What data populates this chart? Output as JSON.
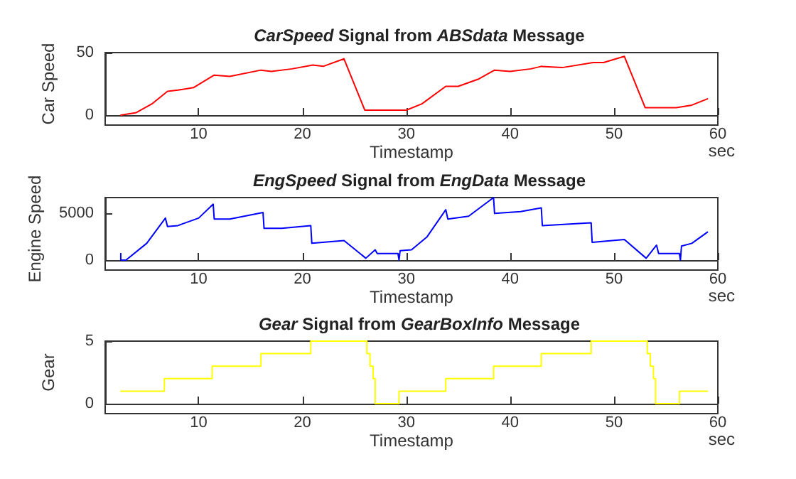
{
  "chart_data": [
    {
      "type": "line",
      "title": "CarSpeed Signal from ABSdata Message",
      "xlabel": "Timestamp",
      "ylabel": "Car Speed",
      "annotations": [
        "sec"
      ],
      "xlim": [
        1,
        60
      ],
      "xticks": [
        10,
        20,
        30,
        40,
        50,
        60
      ],
      "ylim": [
        0,
        50
      ],
      "yticks": [
        0,
        50
      ],
      "series": [
        {
          "color": "#ff0000",
          "x": [
            2.5,
            4,
            5.5,
            7,
            8,
            9.5,
            11.5,
            13,
            16,
            17,
            19,
            21,
            22,
            24,
            26,
            28,
            30,
            31.5,
            33.8,
            35,
            37,
            38.5,
            40,
            42,
            43,
            45,
            48,
            49,
            51,
            53,
            56,
            57.5,
            59
          ],
          "values": [
            0,
            2,
            9,
            19,
            20,
            22,
            32,
            31,
            36,
            35,
            37,
            40,
            39,
            45,
            4,
            4,
            4,
            9,
            23,
            23,
            29,
            36,
            35,
            37,
            39,
            38,
            42,
            42,
            47,
            6,
            6,
            8,
            13
          ]
        }
      ]
    },
    {
      "type": "line",
      "title": "EngSpeed Signal from EngData Message",
      "xlabel": "Timestamp",
      "ylabel": "Engine Speed",
      "annotations": [
        "sec"
      ],
      "xlim": [
        1,
        60
      ],
      "xticks": [
        10,
        20,
        30,
        40,
        50,
        60
      ],
      "ylim": [
        0,
        6700
      ],
      "yticks": [
        0,
        5000
      ],
      "series": [
        {
          "color": "#0000ff",
          "x": [
            2.5,
            2.5,
            3,
            5,
            6.8,
            7,
            8,
            10,
            11.4,
            11.5,
            13,
            16.2,
            16.3,
            18,
            20.8,
            20.9,
            24,
            26.1,
            27,
            27.2,
            29.2,
            29.3,
            29.4,
            30.5,
            32,
            33.8,
            34,
            36,
            38.4,
            38.5,
            41,
            43,
            43.1,
            47.8,
            47.9,
            51,
            53.1,
            54.1,
            54.3,
            56.3,
            56.4,
            56.5,
            57.5,
            59
          ],
          "values": [
            700,
            0,
            0,
            1800,
            4500,
            3600,
            3700,
            4500,
            6000,
            4400,
            4400,
            5100,
            3400,
            3400,
            3700,
            1800,
            2100,
            200,
            1100,
            700,
            700,
            0,
            1000,
            1100,
            2500,
            5400,
            4400,
            4700,
            6700,
            5000,
            5200,
            5600,
            3700,
            4000,
            1900,
            2200,
            200,
            1600,
            700,
            700,
            0,
            1500,
            1800,
            3000
          ]
        }
      ]
    },
    {
      "type": "step",
      "title": "Gear Signal from GearBoxInfo Message",
      "xlabel": "Timestamp",
      "ylabel": "Gear",
      "annotations": [
        "sec"
      ],
      "xlim": [
        1,
        60
      ],
      "xticks": [
        10,
        20,
        30,
        40,
        50,
        60
      ],
      "ylim": [
        0,
        5
      ],
      "yticks": [
        0,
        5
      ],
      "series": [
        {
          "color": "#ffff00",
          "x": [
            2.5,
            6.7,
            11.3,
            16,
            20.8,
            26.2,
            26.5,
            26.8,
            27,
            29.3,
            33.8,
            38.4,
            43,
            47.8,
            53.2,
            53.5,
            53.8,
            54,
            56.3,
            59
          ],
          "values": [
            1,
            2,
            3,
            4,
            5,
            4,
            3,
            2,
            0,
            1,
            2,
            3,
            4,
            5,
            4,
            3,
            2,
            0,
            1,
            1
          ]
        }
      ]
    }
  ]
}
